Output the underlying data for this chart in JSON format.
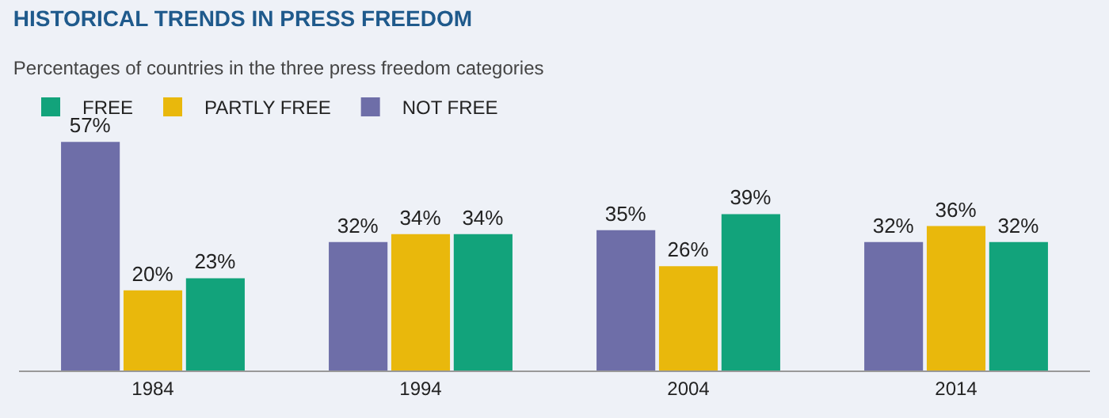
{
  "chart_data": {
    "type": "bar",
    "title": "HISTORICAL TRENDS IN PRESS FREEDOM",
    "subtitle": "Percentages of countries in the three press freedom categories",
    "categories": [
      "1984",
      "1994",
      "2004",
      "2014"
    ],
    "series": [
      {
        "name": "NOT FREE",
        "color": "#6e6ea8",
        "values": [
          57,
          32,
          35,
          32
        ],
        "value_labels": [
          "57%",
          "32%",
          "35%",
          "32%"
        ]
      },
      {
        "name": "PARTLY FREE",
        "color": "#e9b80c",
        "values": [
          20,
          34,
          26,
          36
        ],
        "value_labels": [
          "20%",
          "34%",
          "26%",
          "36%"
        ]
      },
      {
        "name": "FREE",
        "color": "#12a37b",
        "values": [
          23,
          34,
          39,
          32
        ],
        "value_labels": [
          "23%",
          "34%",
          "39%",
          "32%"
        ]
      }
    ],
    "legend": "top left",
    "grid": false
  }
}
